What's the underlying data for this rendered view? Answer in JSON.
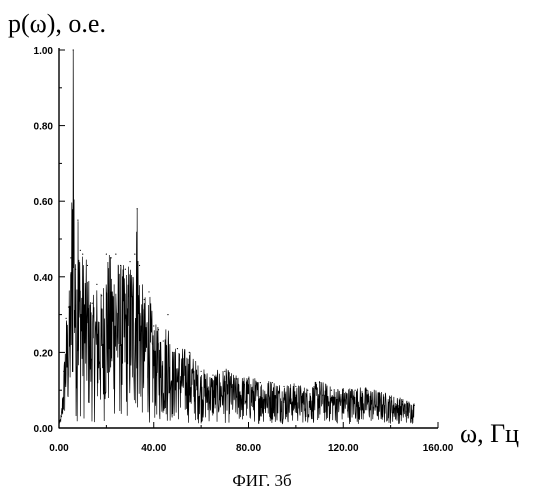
{
  "chart_data": {
    "type": "line",
    "title": "",
    "ylabel": "p(ω), о.е.",
    "xlabel": "ω, Гц",
    "caption": "ФИГ. 3б",
    "xlim": [
      0,
      160
    ],
    "ylim": [
      0,
      1.0
    ],
    "grid": false,
    "xticks": [
      0,
      40,
      80,
      120,
      160
    ],
    "yticks": [
      0,
      0.2,
      0.4,
      0.6,
      0.8,
      1.0
    ],
    "xtick_labels": [
      "0.00",
      "40.00",
      "80.00",
      "120.00",
      "160.00"
    ],
    "ytick_labels": [
      "0.00",
      "0.20",
      "0.40",
      "0.60",
      "0.80",
      "1.00"
    ],
    "series": [
      {
        "x": [
          0,
          1,
          2,
          3,
          4,
          5,
          6,
          7,
          8,
          9,
          10,
          12,
          14,
          16,
          18,
          20,
          22,
          24,
          26,
          28,
          30,
          32,
          33,
          34,
          36,
          38,
          40,
          42,
          44,
          46,
          48,
          50,
          55,
          60,
          65,
          70,
          75,
          80,
          85,
          90,
          95,
          100,
          105,
          110,
          115,
          120,
          125,
          130,
          135,
          140,
          145,
          150
        ],
        "values": [
          0.0,
          0.03,
          0.15,
          0.29,
          0.32,
          0.45,
          1.0,
          0.42,
          0.55,
          0.47,
          0.46,
          0.43,
          0.33,
          0.38,
          0.35,
          0.46,
          0.45,
          0.46,
          0.43,
          0.42,
          0.44,
          0.46,
          0.58,
          0.43,
          0.34,
          0.36,
          0.27,
          0.26,
          0.23,
          0.3,
          0.2,
          0.21,
          0.2,
          0.15,
          0.14,
          0.15,
          0.13,
          0.13,
          0.12,
          0.12,
          0.11,
          0.11,
          0.1,
          0.12,
          0.1,
          0.1,
          0.1,
          0.1,
          0.09,
          0.08,
          0.07,
          0.06
        ]
      }
    ]
  }
}
